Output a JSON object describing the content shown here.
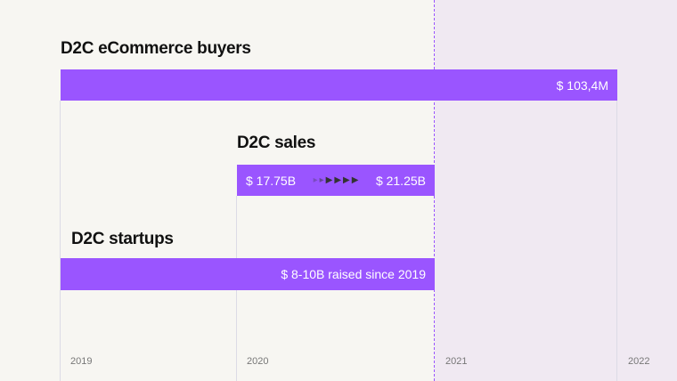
{
  "chart_data": {
    "type": "timeline-bar",
    "x_ticks": [
      "2019",
      "2020",
      "2021",
      "2022"
    ],
    "bars": [
      {
        "title": "D2C eCommerce buyers",
        "start": "2019",
        "end": "2022",
        "label": "$ 103,4M"
      },
      {
        "title": "D2C sales",
        "start": "2020",
        "end": "2021",
        "start_label": "$ 17.75B",
        "end_label": "$ 21.25B"
      },
      {
        "title": "D2C startups",
        "start": "2019",
        "end": "2021",
        "label": "$ 8-10B raised since 2019"
      }
    ],
    "highlight_from": "2021",
    "bar_color": "#9a55ff"
  }
}
